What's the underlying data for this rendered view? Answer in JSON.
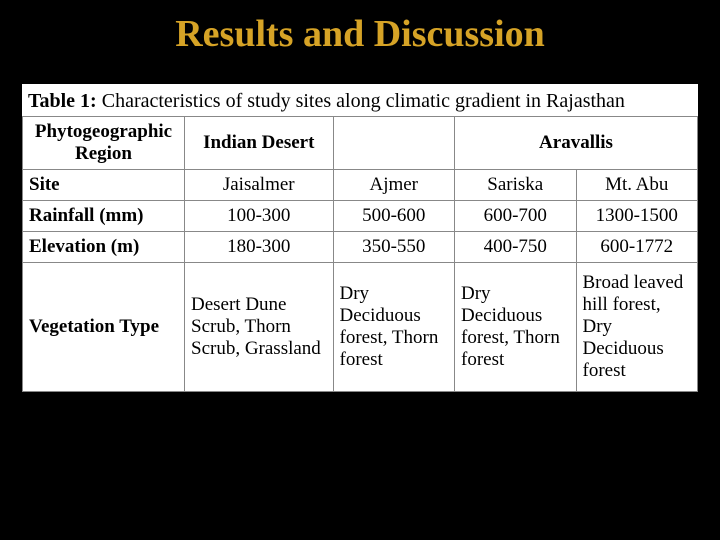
{
  "title": {
    "text": "Results and Discussion",
    "color": "#d6a326"
  },
  "caption": {
    "label": "Table 1:",
    "text": " Characteristics of study sites along climatic gradient in Rajasthan"
  },
  "table": {
    "headers": {
      "col1": "Phytogeographic Region",
      "col2": "Indian Desert",
      "col3_5": "Aravallis"
    },
    "rows": [
      {
        "label": "Site",
        "c2": "Jaisalmer",
        "c3": "Ajmer",
        "c4": "Sariska",
        "c5": "Mt. Abu"
      },
      {
        "label": "Rainfall (mm)",
        "c2": "100-300",
        "c3": "500-600",
        "c4": "600-700",
        "c5": "1300-1500"
      },
      {
        "label": "Elevation (m)",
        "c2": "180-300",
        "c3": "350-550",
        "c4": "400-750",
        "c5": "600-1772"
      },
      {
        "label": "Vegetation Type",
        "c2": "Desert Dune Scrub, Thorn Scrub, Grassland",
        "c3": "Dry Deciduous forest, Thorn forest",
        "c4": "Dry Deciduous forest, Thorn forest",
        "c5": "Broad leaved hill forest, Dry Deciduous forest"
      }
    ]
  },
  "colors": {
    "page_bg": "#000000",
    "title_color": "#d6a326",
    "table_bg": "#ffffff",
    "border": "#888888"
  }
}
